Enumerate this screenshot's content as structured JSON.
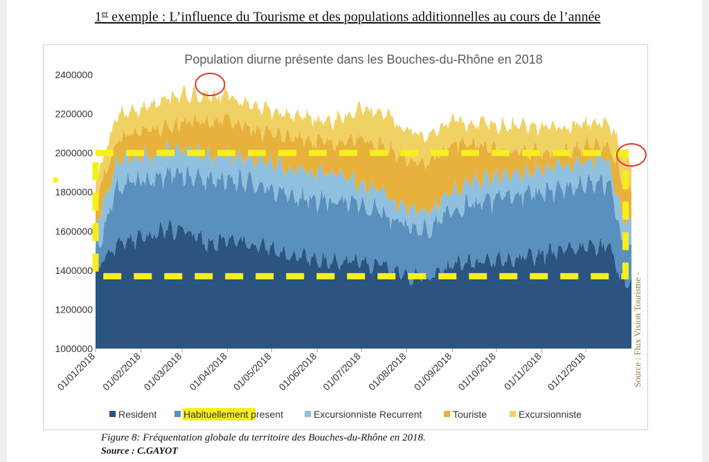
{
  "page": {
    "heading_sup": "er",
    "heading_rest": " exemple : L’influence du Tourisme et des populations additionnelles au cours de l’année",
    "heading_prefix": "1",
    "caption": "Figure 8: Fréquentation globale du territoire des Bouches-du-Rhône en 2018.",
    "source": "Source : C.GAYOT"
  },
  "colors": {
    "resident": "#2c5480",
    "habituel": "#5a90bd",
    "excursionniste_recurrent": "#8fc0df",
    "touriste": "#e7b13c",
    "excursionniste": "#f0d264",
    "highlight_box": "#f6ef1c",
    "annotation_circle": "#d63b30"
  },
  "chart_data": {
    "type": "area",
    "title": "Population diurne présente dans les Bouches-du-Rhône en 2018",
    "xlabel": "",
    "ylabel": "",
    "ylim": [
      1000000,
      2400000
    ],
    "yticks": [
      "2400000",
      "2200000",
      "2000000",
      "1800000",
      "1600000",
      "1400000",
      "1200000",
      "1000000"
    ],
    "ytick_values": [
      2400000,
      2200000,
      2000000,
      1800000,
      1600000,
      1400000,
      1200000,
      1000000
    ],
    "xticks": [
      "01/01/2018",
      "01/02/2018",
      "01/03/2018",
      "01/04/2018",
      "01/05/2018",
      "01/06/2018",
      "01/07/2018",
      "01/08/2018",
      "01/09/2018",
      "01/10/2018",
      "01/11/2018",
      "01/12/2018"
    ],
    "xtick_days": [
      0,
      31,
      59,
      90,
      120,
      151,
      181,
      212,
      243,
      273,
      304,
      334
    ],
    "x_range_days": [
      0,
      365
    ],
    "stacked": true,
    "side_source": "Source : Flux Vision Tourisme -",
    "series_note": "cumulative stack tops, anchor points by day of year",
    "anchor_days": [
      0,
      15,
      31,
      45,
      59,
      75,
      90,
      105,
      120,
      135,
      151,
      166,
      181,
      196,
      212,
      227,
      243,
      258,
      273,
      288,
      304,
      319,
      334,
      350,
      358,
      365
    ],
    "series": [
      {
        "name": "Resident",
        "cumulative_top": [
          1400000,
          1540000,
          1560000,
          1600000,
          1610000,
          1540000,
          1560000,
          1540000,
          1520000,
          1470000,
          1460000,
          1450000,
          1440000,
          1420000,
          1370000,
          1360000,
          1420000,
          1440000,
          1450000,
          1460000,
          1480000,
          1500000,
          1520000,
          1520000,
          1360000,
          1330000
        ]
      },
      {
        "name": "Habituellement present",
        "cumulative_top": [
          1500000,
          1830000,
          1860000,
          1880000,
          1900000,
          1860000,
          1870000,
          1850000,
          1820000,
          1780000,
          1760000,
          1750000,
          1730000,
          1690000,
          1620000,
          1610000,
          1700000,
          1740000,
          1760000,
          1780000,
          1800000,
          1820000,
          1840000,
          1850000,
          1550000,
          1500000
        ]
      },
      {
        "name": "Excursionniste Recurrent",
        "cumulative_top": [
          1600000,
          1960000,
          1990000,
          2010000,
          2020000,
          1980000,
          1990000,
          1970000,
          1950000,
          1910000,
          1900000,
          1880000,
          1850000,
          1790000,
          1720000,
          1700000,
          1800000,
          1860000,
          1880000,
          1900000,
          1920000,
          1940000,
          1960000,
          1970000,
          1680000,
          1620000
        ]
      },
      {
        "name": "Touriste",
        "cumulative_top": [
          1760000,
          2080000,
          2100000,
          2130000,
          2150000,
          2160000,
          2170000,
          2120000,
          2100000,
          2080000,
          2060000,
          2050000,
          2080000,
          2040000,
          1970000,
          1950000,
          2050000,
          2040000,
          2020000,
          2010000,
          2000000,
          2010000,
          2030000,
          2040000,
          1880000,
          1800000
        ]
      },
      {
        "name": "Excursionniste",
        "cumulative_top": [
          1850000,
          2200000,
          2230000,
          2270000,
          2300000,
          2300000,
          2290000,
          2250000,
          2220000,
          2190000,
          2170000,
          2170000,
          2230000,
          2200000,
          2120000,
          2090000,
          2170000,
          2150000,
          2140000,
          2140000,
          2130000,
          2140000,
          2150000,
          2160000,
          2020000,
          1950000
        ]
      }
    ],
    "legend": [
      "Resident",
      "Habituellement present",
      "Excursionniste Recurrent",
      "Touriste",
      "Excursionniste"
    ],
    "legend_highlight_word": "Habituellement",
    "annotations": {
      "box_top_value": 2000000,
      "box_bottom_value": 1370000,
      "box_day_start": 0,
      "box_day_end": 361,
      "circle_peak_day": 78,
      "circle_peak_value": 2350000,
      "circle_end_day": 364,
      "circle_end_value": 1990000
    }
  }
}
